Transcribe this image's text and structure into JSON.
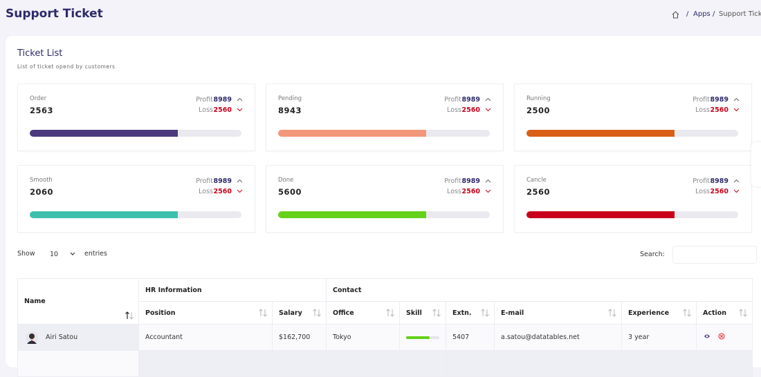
{
  "header": {
    "title": "Support Ticket",
    "breadcrumb": [
      "Apps",
      "Support Ticket"
    ]
  },
  "panel": {
    "title": "Ticket List",
    "subtitle": "List of ticket opend by customers"
  },
  "cards": [
    {
      "label": "Order",
      "value": 2563,
      "profit_label": "Profit",
      "profit": 8989,
      "loss_label": "Loss",
      "loss": 2560,
      "progress": 70,
      "color": "#4b3a7d"
    },
    {
      "label": "Pending",
      "value": 8943,
      "profit_label": "Profit",
      "profit": 8989,
      "loss_label": "Loss",
      "loss": 2560,
      "progress": 70,
      "color": "#f2977a"
    },
    {
      "label": "Running",
      "value": 2500,
      "profit_label": "Profit",
      "profit": 8989,
      "loss_label": "Loss",
      "loss": 2560,
      "progress": 70,
      "color": "#d95f17"
    },
    {
      "label": "Smooth",
      "value": 2060,
      "profit_label": "Profit",
      "profit": 8989,
      "loss_label": "Loss",
      "loss": 2560,
      "progress": 70,
      "color": "#3dbfad"
    },
    {
      "label": "Done",
      "value": 5600,
      "profit_label": "Profit",
      "profit": 8989,
      "loss_label": "Loss",
      "loss": 2560,
      "progress": 70,
      "color": "#66d11a"
    },
    {
      "label": "Cancle",
      "value": 2560,
      "profit_label": "Profit",
      "profit": 8989,
      "loss_label": "Loss",
      "loss": 2560,
      "progress": 70,
      "color": "#c8001a"
    }
  ],
  "controls": {
    "show_label": "Show",
    "page_length": 10,
    "entries_label": "entries",
    "search_label": "Search:"
  },
  "table": {
    "group_headers": [
      "HR Information",
      "Contact"
    ],
    "columns": [
      "Name",
      "Position",
      "Salary",
      "Office",
      "Skill",
      "Extn.",
      "E-mail",
      "Experience",
      "Action"
    ],
    "rows": [
      [
        "Airi Satou",
        "Accountant",
        "$162,700",
        "Tokyo",
        70,
        "5407",
        "a.satou@datatables.net",
        "3 year"
      ]
    ]
  }
}
